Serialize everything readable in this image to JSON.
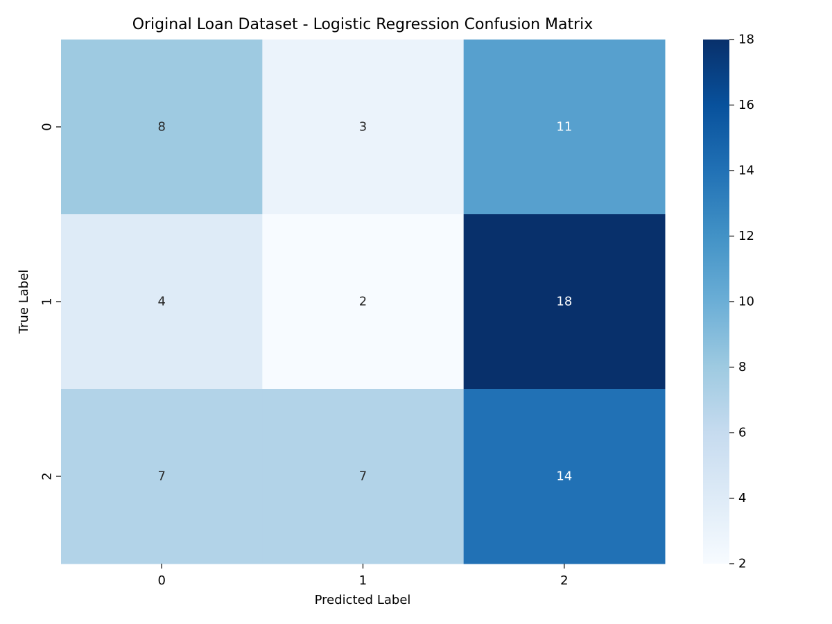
{
  "chart_data": {
    "type": "heatmap",
    "title": "Original Loan Dataset - Logistic Regression Confusion Matrix",
    "xlabel": "Predicted Label",
    "ylabel": "True Label",
    "x_categories": [
      "0",
      "1",
      "2"
    ],
    "y_categories": [
      "0",
      "1",
      "2"
    ],
    "values": [
      [
        8,
        3,
        11
      ],
      [
        4,
        2,
        18
      ],
      [
        7,
        7,
        14
      ]
    ],
    "colorbar": {
      "min": 2,
      "max": 18,
      "ticks": [
        "2",
        "4",
        "6",
        "8",
        "10",
        "12",
        "14",
        "16",
        "18"
      ],
      "colormap": "Blues"
    },
    "annotation_colors": {
      "dark_text": "#262626",
      "light_text": "#ffffff"
    }
  }
}
